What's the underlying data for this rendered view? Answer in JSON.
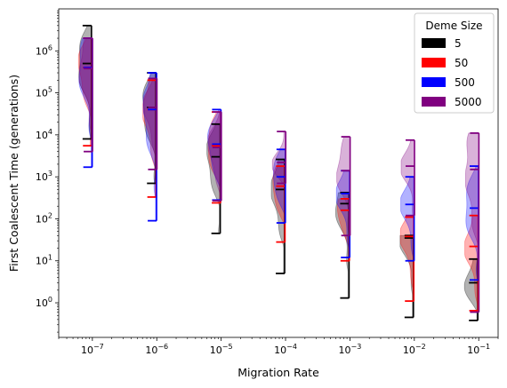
{
  "chart_data": {
    "type": "violin",
    "title": "",
    "xlabel": "Migration Rate",
    "ylabel": "First Coalescent Time (generations)",
    "xscale": "log",
    "yscale": "log",
    "xlim": [
      3e-08,
      0.2
    ],
    "ylim": [
      0.15,
      10000000.0
    ],
    "x_ticks": [
      {
        "value": 1e-07,
        "exp": "−7"
      },
      {
        "value": 1e-06,
        "exp": "−6"
      },
      {
        "value": 1e-05,
        "exp": "−5"
      },
      {
        "value": 0.0001,
        "exp": "−4"
      },
      {
        "value": 0.001,
        "exp": "−3"
      },
      {
        "value": 0.01,
        "exp": "−2"
      },
      {
        "value": 0.1,
        "exp": "−1"
      }
    ],
    "y_ticks": [
      {
        "value": 1,
        "exp": "0"
      },
      {
        "value": 10,
        "exp": "1"
      },
      {
        "value": 100,
        "exp": "2"
      },
      {
        "value": 1000,
        "exp": "3"
      },
      {
        "value": 10000,
        "exp": "4"
      },
      {
        "value": 100000,
        "exp": "5"
      },
      {
        "value": 1000000,
        "exp": "6"
      }
    ],
    "legend": {
      "title": "Deme Size",
      "position": "top-right",
      "entries": [
        {
          "label": "5",
          "color": "#000000"
        },
        {
          "label": "50",
          "color": "#ff0000"
        },
        {
          "label": "500",
          "color": "#0000ff"
        },
        {
          "label": "5000",
          "color": "#800080"
        }
      ]
    },
    "series": [
      {
        "name": "5",
        "color": "#000000",
        "groups": [
          {
            "x": 1e-07,
            "min": 8000,
            "median": 500000,
            "max": 4000000
          },
          {
            "x": 1e-06,
            "min": 700,
            "median": 45000,
            "max": 300000
          },
          {
            "x": 1e-05,
            "min": 45,
            "median": 3000,
            "max": 18000
          },
          {
            "x": 0.0001,
            "min": 5,
            "median": 500,
            "max": 2600
          },
          {
            "x": 0.001,
            "min": 1.3,
            "median": 230,
            "max": 420
          },
          {
            "x": 0.01,
            "min": 0.45,
            "median": 35,
            "max": 40
          },
          {
            "x": 0.1,
            "min": 0.38,
            "median": 3,
            "max": 11
          }
        ]
      },
      {
        "name": "50",
        "color": "#ff0000",
        "groups": [
          {
            "x": 1e-07,
            "min": 5500,
            "median": 400000,
            "max": 2000000
          },
          {
            "x": 1e-06,
            "min": 330,
            "median": 40000,
            "max": 200000
          },
          {
            "x": 1e-05,
            "min": 240,
            "median": 5500,
            "max": 35000
          },
          {
            "x": 0.0001,
            "min": 28,
            "median": 600,
            "max": 1800
          },
          {
            "x": 0.001,
            "min": 10,
            "median": 160,
            "max": 300
          },
          {
            "x": 0.01,
            "min": 1.1,
            "median": 38,
            "max": 110
          },
          {
            "x": 0.1,
            "min": 0.65,
            "median": 22,
            "max": 120
          }
        ]
      },
      {
        "name": "500",
        "color": "#0000ff",
        "groups": [
          {
            "x": 1e-07,
            "min": 1700,
            "median": 400000,
            "max": 2000000
          },
          {
            "x": 1e-06,
            "min": 90,
            "median": 40000,
            "max": 300000
          },
          {
            "x": 1e-05,
            "min": 280,
            "median": 6000,
            "max": 40000
          },
          {
            "x": 0.0001,
            "min": 80,
            "median": 1000,
            "max": 4500
          },
          {
            "x": 0.001,
            "min": 12,
            "median": 400,
            "max": 1400
          },
          {
            "x": 0.01,
            "min": 10,
            "median": 220,
            "max": 1000
          },
          {
            "x": 0.1,
            "min": 3.5,
            "median": 180,
            "max": 1800
          }
        ]
      },
      {
        "name": "5000",
        "color": "#800080",
        "groups": [
          {
            "x": 1e-07,
            "min": 4000,
            "median": 380000,
            "max": 2000000
          },
          {
            "x": 1e-06,
            "min": 1500,
            "median": 45000,
            "max": 220000
          },
          {
            "x": 1e-05,
            "min": 270,
            "median": 5000,
            "max": 35000
          },
          {
            "x": 0.0001,
            "min": 700,
            "median": 2200,
            "max": 12000
          },
          {
            "x": 0.001,
            "min": 40,
            "median": 1400,
            "max": 9000
          },
          {
            "x": 0.01,
            "min": 120,
            "median": 1800,
            "max": 7500
          },
          {
            "x": 0.1,
            "min": 0.6,
            "median": 1500,
            "max": 11000
          }
        ]
      }
    ]
  }
}
